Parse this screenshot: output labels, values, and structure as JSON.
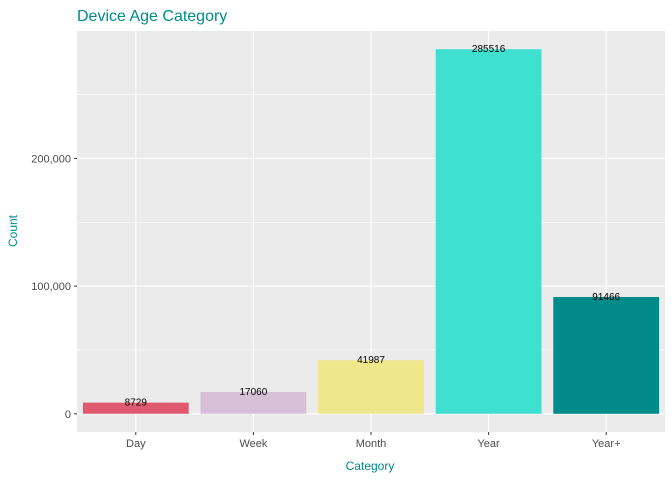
{
  "chart_data": {
    "type": "bar",
    "title": "Device Age Category",
    "xlabel": "Category",
    "ylabel": "Count",
    "categories": [
      "Day",
      "Week",
      "Month",
      "Year",
      "Year+"
    ],
    "values": [
      8729,
      17060,
      41987,
      285516,
      91466
    ],
    "value_labels": [
      "8729",
      "17060",
      "41987",
      "285516",
      "91466"
    ],
    "bar_colors": [
      "#E05A6F",
      "#D8BFD8",
      "#F0E68C",
      "#40E0D0",
      "#008B8B"
    ],
    "ylim": [
      -14276,
      299792
    ],
    "y_ticks": [
      0,
      100000,
      200000
    ],
    "y_tick_labels": [
      "0",
      "100,000",
      "200,000"
    ],
    "grid": true,
    "legend": "none",
    "title_color": "#008B8B",
    "axis_title_color": "#008B8B",
    "panel_background": "#EBEBEB"
  }
}
